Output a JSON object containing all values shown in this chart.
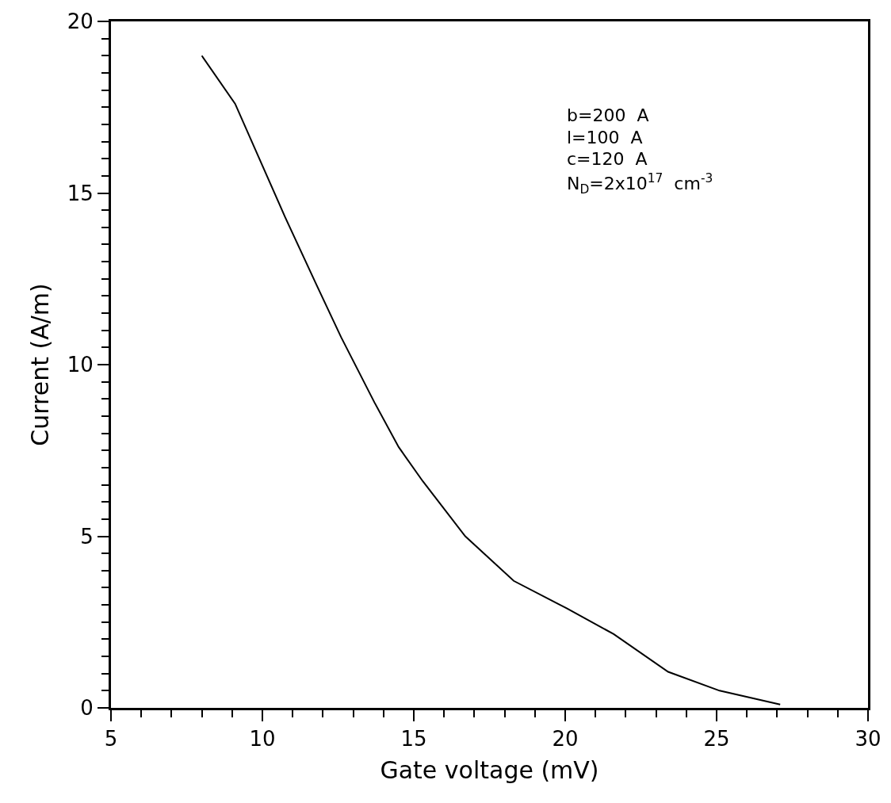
{
  "chart_data": {
    "type": "line",
    "xlabel": "Gate voltage (mV)",
    "ylabel": "Current (A/m)",
    "x": [
      8.0,
      9.1,
      10.0,
      10.75,
      11.8,
      12.6,
      13.7,
      14.5,
      15.3,
      16.7,
      18.3,
      20.05,
      21.6,
      23.4,
      25.1,
      27.1
    ],
    "series": [
      {
        "color": "#000000",
        "values": [
          19.0,
          17.6,
          15.8,
          14.3,
          12.3,
          10.8,
          8.9,
          7.6,
          6.6,
          5.0,
          3.7,
          2.9,
          2.15,
          1.05,
          0.5,
          0.1
        ]
      }
    ],
    "annotations": [
      "b=200  A",
      "l=100  A",
      "c=120  A",
      "N$_{D}$=2x10$^{17}$  cm$^{-3}$"
    ],
    "xlim": [
      5,
      30
    ],
    "xticks": [
      5,
      10,
      15,
      20,
      25,
      30
    ],
    "ylim": [
      0,
      20
    ],
    "yticks": [
      0,
      5,
      10,
      15,
      20
    ],
    "marker": "none",
    "line_style": "solid"
  }
}
